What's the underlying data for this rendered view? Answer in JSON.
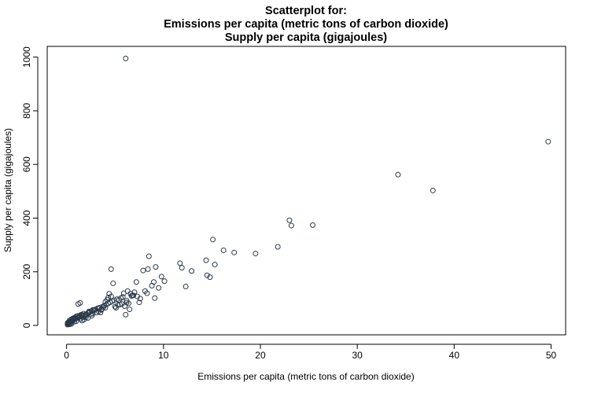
{
  "chart_data": {
    "type": "scatter",
    "title": [
      "Scatterplot for:",
      "Emissions per capita (metric tons of carbon dioxide)",
      "Supply per capita (gigajoules)"
    ],
    "xlabel": "Emissions per capita (metric tons of carbon dioxide)",
    "ylabel": "Supply per capita (gigajoules)",
    "xlim": [
      -2,
      51.5
    ],
    "ylim": [
      -35,
      1040
    ],
    "xticks": [
      "0",
      "10",
      "20",
      "30",
      "40",
      "50"
    ],
    "yticks": [
      "0",
      "200",
      "400",
      "600",
      "800",
      "1000"
    ],
    "grid": false,
    "legend": "none",
    "marker_color": "#2b3a4a",
    "series": [
      {
        "x": [
          6.1,
          49.7,
          34.2,
          37.8,
          23.0,
          23.2,
          25.4,
          15.1,
          8.5,
          16.2,
          17.3,
          19.5,
          21.8,
          11.7,
          11.9,
          14.4,
          15.3,
          12.9,
          9.8,
          10.1,
          14.5,
          14.8,
          12.3,
          4.6,
          7.9,
          8.4,
          9.2,
          9.0,
          8.8,
          9.5,
          9.1,
          7.2,
          7.6,
          8.3,
          8.1,
          7.0,
          4.8,
          5.4,
          5.9,
          6.3,
          6.6,
          6.8,
          6.2,
          5.7,
          6.0,
          6.4,
          7.3,
          7.5,
          6.5,
          6.1,
          5.5,
          5.1,
          4.4,
          4.2,
          4.0,
          3.8,
          3.6,
          3.3,
          3.1,
          2.9,
          2.7,
          2.5,
          2.3,
          2.1,
          1.9,
          1.7,
          1.5,
          1.3,
          1.1,
          1.2,
          1.4,
          0.9,
          0.8,
          0.7,
          0.6,
          0.5,
          0.4,
          0.3,
          0.25,
          0.2,
          0.15,
          0.1,
          0.12,
          0.18,
          0.3,
          0.45,
          0.6,
          0.75,
          0.9,
          1.0,
          1.6,
          1.8,
          2.0,
          2.2,
          2.4,
          2.6,
          2.8,
          3.0,
          3.2,
          3.4,
          3.7,
          3.9,
          4.1,
          4.3,
          4.5,
          4.7,
          4.9,
          5.2,
          5.6,
          5.8,
          6.7,
          6.9,
          4.6,
          4.3,
          3.6,
          3.5,
          2.0,
          1.8,
          1.6,
          1.4,
          2.6,
          2.2,
          0.5,
          0.3,
          0.8,
          1.0,
          0.4,
          0.2,
          0.1,
          0.35,
          0.55,
          0.7,
          0.95,
          1.15,
          1.35,
          1.55,
          1.75,
          2.3,
          2.7,
          3.3,
          4.0,
          5.0,
          5.3,
          6.2,
          1.2,
          1.5
        ],
        "y": [
          995,
          685,
          562,
          503,
          392,
          372,
          374,
          320,
          258,
          280,
          272,
          268,
          293,
          232,
          215,
          243,
          227,
          203,
          182,
          165,
          187,
          180,
          145,
          210,
          205,
          210,
          218,
          162,
          148,
          140,
          102,
          162,
          100,
          120,
          128,
          124,
          157,
          95,
          120,
          128,
          118,
          112,
          85,
          80,
          72,
          82,
          108,
          86,
          60,
          40,
          78,
          66,
          118,
          96,
          88,
          68,
          60,
          52,
          48,
          58,
          44,
          42,
          48,
          40,
          35,
          30,
          38,
          32,
          28,
          80,
          84,
          26,
          22,
          20,
          18,
          16,
          14,
          12,
          10,
          9,
          8,
          6,
          10,
          12,
          18,
          22,
          25,
          28,
          30,
          34,
          36,
          38,
          42,
          46,
          50,
          54,
          56,
          60,
          64,
          66,
          70,
          74,
          78,
          82,
          86,
          90,
          94,
          98,
          102,
          106,
          110,
          112,
          108,
          104,
          58,
          48,
          30,
          22,
          18,
          24,
          36,
          28,
          6,
          4,
          14,
          16,
          8,
          5,
          3,
          12,
          20,
          24,
          26,
          28,
          34,
          40,
          44,
          52,
          58,
          62,
          66,
          70,
          76,
          92,
          36,
          40
        ]
      }
    ]
  }
}
